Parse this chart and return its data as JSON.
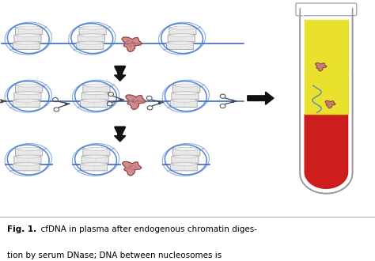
{
  "figure_bg": "#ffffff",
  "caption_bg": "#dce8f0",
  "dna_color": "#4477cc",
  "tumor_color": "#c87878",
  "tumor_edge": "#884444",
  "nuc_fill": "#e8e8e8",
  "nuc_edge": "#aaaaaa",
  "nuc_line": "#cccccc",
  "arrow_color": "#111111",
  "tube_glass": "#dddddd",
  "tube_yellow": "#e8e020",
  "tube_red": "#cc1111",
  "tube_white": "#f5f5f5",
  "scissors_color": "#444444",
  "figsize": [
    4.74,
    3.3
  ],
  "dpi": 100,
  "caption_bold": "Fig. 1.",
  "caption_text": "  cfDNA in plasma after endogenous chromatin diges-",
  "caption_text2": "tion by serum DNase; DNA between nucleosomes is"
}
